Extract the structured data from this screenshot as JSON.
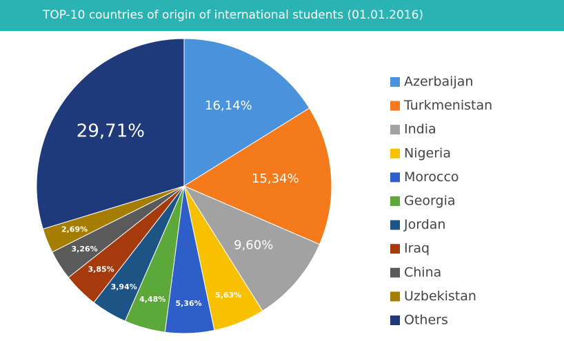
{
  "chart_data": {
    "type": "pie",
    "title": "TOP-10 countries of origin of international students (01.01.2016)",
    "categories": [
      "Azerbaijan",
      "Turkmenistan",
      "India",
      "Nigeria",
      "Morocco",
      "Georgia",
      "Jordan",
      "Iraq",
      "China",
      "Uzbekistan",
      "Others"
    ],
    "values": [
      16.14,
      15.34,
      9.6,
      5.63,
      5.36,
      4.48,
      3.94,
      3.85,
      3.26,
      2.69,
      29.71
    ],
    "value_labels": [
      "16,14%",
      "15,34%",
      "9,60%",
      "5,63%",
      "5,36%",
      "4,48%",
      "3,94%",
      "3,85%",
      "3,26%",
      "2,69%",
      "29,71%"
    ],
    "colors": [
      "#4a93dc",
      "#f57a1c",
      "#a2a2a2",
      "#f7c000",
      "#2e5ec8",
      "#5da83a",
      "#1d5486",
      "#a53b0c",
      "#5a5a5a",
      "#a57d00",
      "#1f3a7a"
    ],
    "legend": "right"
  }
}
